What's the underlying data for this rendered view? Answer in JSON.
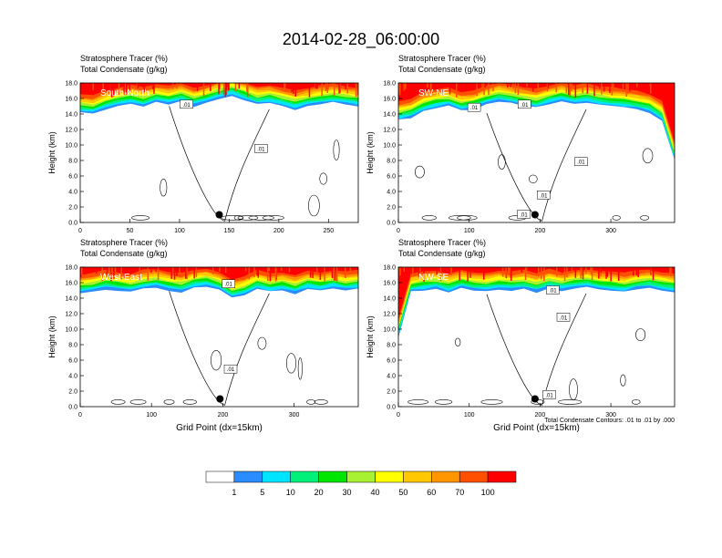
{
  "chart_data": {
    "type": "heatmap",
    "title": "2014-02-28_06:00:00",
    "contour_note": "Total Condensate Contours: .01 to .01 by .000",
    "colorbar": {
      "levels": [
        "1",
        "5",
        "10",
        "20",
        "30",
        "40",
        "50",
        "60",
        "70",
        "100"
      ],
      "colors": [
        "#ffffff",
        "#2a8cff",
        "#00e5ff",
        "#00f07a",
        "#00e600",
        "#a8f032",
        "#ffff00",
        "#ffc800",
        "#ff9600",
        "#ff5000",
        "#ff0000"
      ]
    },
    "panels": [
      {
        "id": "south-north",
        "name": "South-North",
        "label_line1": "Stratosphere Tracer   (%)",
        "label_line2": "Total Condensate   (g/kg)",
        "ylabel": "Height (km)",
        "xlabel": "",
        "ylim": [
          0,
          18
        ],
        "yticks": [
          "0.0",
          "2.0",
          "4.0",
          "6.0",
          "8.0",
          "10.0",
          "12.0",
          "14.0",
          "16.0",
          "18.0"
        ],
        "xlim": [
          0,
          280
        ],
        "xticks": [
          0,
          50,
          100,
          150,
          200,
          250
        ],
        "tracer_base_km": [
          14.2,
          14.0,
          14.6,
          15.0,
          15.3,
          15.0,
          15.5,
          15.2,
          15.6,
          15.0,
          15.4,
          16.0,
          16.4,
          15.8,
          15.2,
          15.4,
          15.0,
          14.6,
          15.0,
          15.3,
          15.5,
          15.2,
          15.0
        ],
        "contour_labels": [
          {
            "x": 107,
            "y": 15.2,
            "text": ".01"
          },
          {
            "x": 182,
            "y": 9.5,
            "text": ".01"
          }
        ],
        "marker": {
          "x": 140,
          "y": 1.0
        }
      },
      {
        "id": "sw-ne",
        "name": "SW-NE",
        "label_line1": "Stratosphere Tracer   (%)",
        "label_line2": "Total Condensate   (g/kg)",
        "ylabel": "Height (km)",
        "xlabel": "",
        "ylim": [
          0,
          18
        ],
        "yticks": [
          "0.0",
          "2.0",
          "4.0",
          "6.0",
          "8.0",
          "10.0",
          "12.0",
          "14.0",
          "16.0",
          "18.0"
        ],
        "xlim": [
          0,
          390
        ],
        "xticks": [
          0,
          100,
          200,
          300
        ],
        "tracer_base_km": [
          13.2,
          13.5,
          14.4,
          14.8,
          15.0,
          14.4,
          14.6,
          15.2,
          15.6,
          15.4,
          15.0,
          14.8,
          15.3,
          15.6,
          15.2,
          15.5,
          15.2,
          15.0,
          14.8,
          14.6,
          14.2,
          13.2,
          8.0
        ],
        "contour_labels": [
          {
            "x": 107,
            "y": 14.8,
            "text": ".01"
          },
          {
            "x": 178,
            "y": 15.2,
            "text": ".01"
          },
          {
            "x": 258,
            "y": 7.8,
            "text": ".01"
          },
          {
            "x": 205,
            "y": 3.5,
            "text": ".01"
          },
          {
            "x": 177,
            "y": 1.0,
            "text": ".01"
          }
        ],
        "marker": {
          "x": 193,
          "y": 1.0
        }
      },
      {
        "id": "west-east",
        "name": "West-East",
        "label_line1": "Stratosphere Tracer   (%)",
        "label_line2": "Total Condensate   (g/kg)",
        "ylabel": "Height (km)",
        "xlabel": "Grid Point (dx=15km)",
        "ylim": [
          0,
          18
        ],
        "yticks": [
          "0.0",
          "2.0",
          "4.0",
          "6.0",
          "8.0",
          "10.0",
          "12.0",
          "14.0",
          "16.0",
          "18.0"
        ],
        "xlim": [
          0,
          390
        ],
        "xticks": [
          0,
          100,
          200,
          300
        ],
        "tracer_base_km": [
          14.6,
          14.8,
          15.2,
          15.0,
          14.8,
          15.2,
          15.4,
          15.0,
          14.8,
          15.3,
          15.5,
          15.0,
          14.0,
          14.4,
          15.2,
          14.8,
          15.0,
          14.6,
          15.2,
          15.0,
          15.3,
          15.0,
          15.2
        ],
        "contour_labels": [
          {
            "x": 208,
            "y": 15.8,
            "text": ".01"
          },
          {
            "x": 211,
            "y": 4.8,
            "text": ".01"
          }
        ],
        "marker": {
          "x": 196,
          "y": 1.0
        }
      },
      {
        "id": "nw-se",
        "name": "NW-SE",
        "label_line1": "Stratosphere Tracer   (%)",
        "label_line2": "Total Condensate   (g/kg)",
        "ylabel": "Height (km)",
        "xlabel": "Grid Point (dx=15km)",
        "ylim": [
          0,
          18
        ],
        "yticks": [
          "0.0",
          "2.0",
          "4.0",
          "6.0",
          "8.0",
          "10.0",
          "12.0",
          "14.0",
          "16.0",
          "18.0"
        ],
        "xlim": [
          0,
          390
        ],
        "xticks": [
          0,
          100,
          200,
          300
        ],
        "tracer_base_km": [
          9.0,
          14.8,
          15.0,
          15.2,
          14.8,
          15.3,
          15.0,
          14.9,
          15.2,
          15.0,
          15.2,
          14.8,
          15.3,
          15.0,
          15.2,
          15.4,
          15.1,
          15.0,
          14.8,
          15.2,
          15.3,
          15.0,
          14.8
        ],
        "contour_labels": [
          {
            "x": 218,
            "y": 15.0,
            "text": ".01"
          },
          {
            "x": 233,
            "y": 11.5,
            "text": ".01"
          },
          {
            "x": 213,
            "y": 1.5,
            "text": ".01"
          }
        ],
        "marker": {
          "x": 193,
          "y": 1.0
        }
      }
    ]
  }
}
